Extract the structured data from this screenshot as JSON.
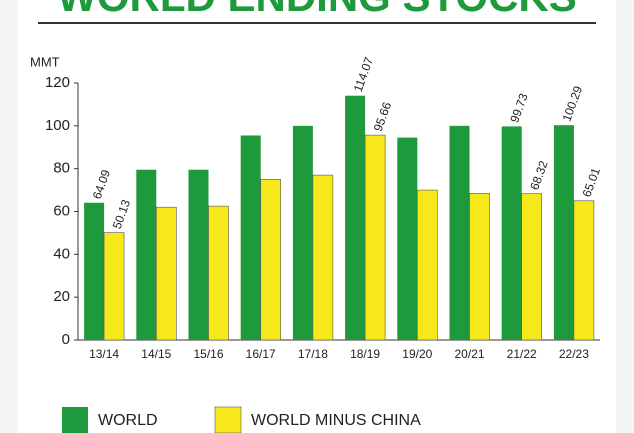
{
  "chart_data": {
    "type": "bar",
    "title": "WORLD ENDING STOCKS",
    "ylabel": "MMT",
    "categories": [
      "13/14",
      "14/15",
      "15/16",
      "16/17",
      "17/18",
      "18/19",
      "19/20",
      "20/21",
      "21/22",
      "22/23"
    ],
    "series": [
      {
        "name": "WORLD",
        "color": "#1e9a3c",
        "values": [
          64.09,
          79.5,
          79.5,
          95.5,
          100,
          114.07,
          94.5,
          100,
          99.73,
          100.29
        ],
        "value_labels": [
          "64.09",
          null,
          null,
          null,
          null,
          "114.07",
          null,
          null,
          "99.73",
          "100.29"
        ]
      },
      {
        "name": "WORLD MINUS CHINA",
        "color": "#f7e81c",
        "values": [
          50.13,
          62,
          62.5,
          75,
          77,
          95.66,
          70,
          68.5,
          68.32,
          65.01
        ],
        "value_labels": [
          "50.13",
          null,
          null,
          null,
          null,
          "95.66",
          null,
          null,
          "68.32",
          "65.01"
        ]
      }
    ],
    "ylim": [
      0,
      120
    ],
    "yticks": [
      0,
      20,
      40,
      60,
      80,
      100,
      120
    ]
  }
}
